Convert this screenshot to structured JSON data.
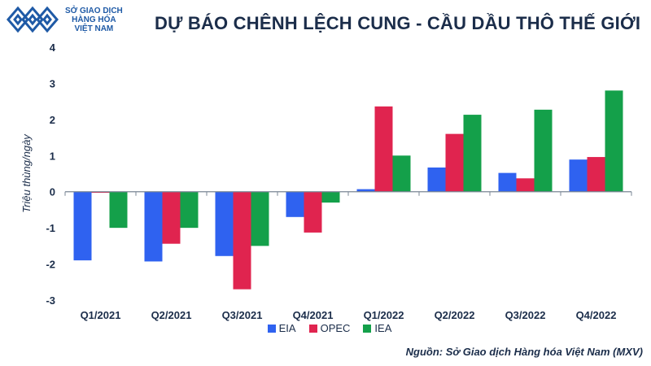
{
  "brand": {
    "line1": "SỞ GIAO DỊCH",
    "line2": "HÀNG HÓA",
    "line3": "VIỆT NAM",
    "logo_color": "#1f5aa6"
  },
  "chart_data": {
    "type": "bar",
    "title": "DỰ BÁO CHÊNH LỆCH CUNG - CẦU DẦU THÔ THẾ GIỚI",
    "xlabel": "",
    "ylabel": "Triệu thùng/ngày",
    "ylim": [
      -3,
      4
    ],
    "yticks": [
      4,
      3,
      2,
      1,
      0,
      -1,
      -2,
      -3
    ],
    "grid": false,
    "legend_position": "bottom-center",
    "categories": [
      "Q1/2021",
      "Q2/2021",
      "Q3/2021",
      "Q4/2021",
      "Q1/2022",
      "Q2/2022",
      "Q3/2022",
      "Q4/2022"
    ],
    "series": [
      {
        "name": "EIA",
        "color": "#2f62f0",
        "values": [
          -1.9,
          -1.93,
          -1.78,
          -0.7,
          0.07,
          0.67,
          0.52,
          0.89
        ]
      },
      {
        "name": "OPEC",
        "color": "#e0244f",
        "values": [
          -0.03,
          -1.44,
          -2.7,
          -1.13,
          2.36,
          1.6,
          0.37,
          0.96
        ]
      },
      {
        "name": "IEA",
        "color": "#14a04a",
        "values": [
          -1.0,
          -1.0,
          -1.5,
          -0.3,
          1.0,
          2.13,
          2.27,
          2.8
        ]
      }
    ]
  },
  "source": "Nguồn: Sở Giao dịch Hàng hóa Việt Nam (MXV)"
}
